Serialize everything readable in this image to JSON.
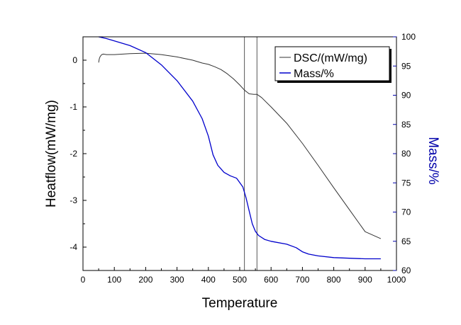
{
  "chart_data": {
    "type": "line",
    "title": "",
    "xlabel": "Temperature",
    "ylabel_left": "Heatflow(mW/mg)",
    "ylabel_right": "Mass/%",
    "xlim": [
      0,
      1000
    ],
    "xticks": [
      0,
      100,
      200,
      300,
      400,
      500,
      600,
      700,
      800,
      900,
      1000
    ],
    "ylim_left": [
      -4.5,
      0.5
    ],
    "yticks_left": [
      0,
      -1,
      -2,
      -3,
      -4
    ],
    "ylim_right": [
      60,
      100
    ],
    "yticks_right": [
      60,
      65,
      70,
      75,
      80,
      85,
      90,
      95,
      100
    ],
    "grid": false,
    "legend_position": "top-right",
    "vertical_lines": [
      515,
      555
    ],
    "colors": {
      "dsc": "#333333",
      "mass": "#0000cc",
      "right_axis": "#0000aa"
    },
    "series": [
      {
        "name": "DSC/(mW/mg)",
        "axis": "left",
        "x": [
          50,
          52,
          55,
          60,
          65,
          75,
          100,
          150,
          200,
          250,
          300,
          350,
          380,
          400,
          420,
          440,
          460,
          480,
          500,
          515,
          530,
          545,
          555,
          570,
          600,
          650,
          700,
          750,
          800,
          850,
          900,
          950
        ],
        "y": [
          -0.05,
          0.03,
          0.08,
          0.12,
          0.13,
          0.12,
          0.12,
          0.14,
          0.15,
          0.12,
          0.07,
          0.0,
          -0.06,
          -0.09,
          -0.14,
          -0.2,
          -0.29,
          -0.4,
          -0.53,
          -0.64,
          -0.72,
          -0.73,
          -0.73,
          -0.8,
          -1.0,
          -1.35,
          -1.78,
          -2.25,
          -2.73,
          -3.2,
          -3.67,
          -3.82
        ]
      },
      {
        "name": "Mass/%",
        "axis": "right",
        "x": [
          50,
          75,
          100,
          150,
          200,
          250,
          300,
          350,
          380,
          400,
          415,
          430,
          440,
          450,
          470,
          490,
          510,
          520,
          530,
          540,
          550,
          560,
          580,
          600,
          650,
          680,
          700,
          720,
          750,
          800,
          850,
          900,
          950
        ],
        "y": [
          100,
          99.7,
          99.3,
          98.5,
          97.3,
          95.2,
          92.5,
          89,
          86,
          83,
          79.8,
          78,
          77.4,
          76.8,
          76.2,
          75.8,
          74.3,
          72.5,
          70.2,
          68,
          66.7,
          66,
          65.3,
          65,
          64.5,
          63.9,
          63.2,
          62.8,
          62.5,
          62.2,
          62.1,
          62.0,
          62.0
        ]
      }
    ]
  }
}
